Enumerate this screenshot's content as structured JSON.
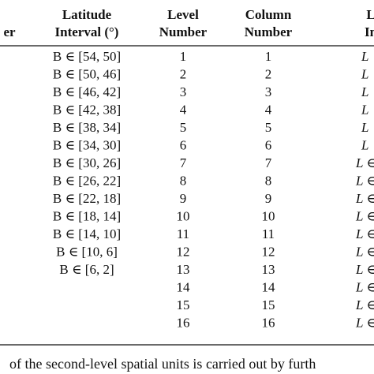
{
  "table": {
    "headers": [
      {
        "lines": [
          "er"
        ]
      },
      {
        "lines": [
          "Latitude",
          "Interval (°)"
        ]
      },
      {
        "lines": [
          "Level",
          "Number"
        ]
      },
      {
        "lines": [
          "Column",
          "Number"
        ]
      },
      {
        "lines": [
          "L",
          "In"
        ]
      }
    ],
    "rows": [
      {
        "latitude": "B ∈ [54, 50]",
        "level": "1",
        "column": "1",
        "longitude": "L"
      },
      {
        "latitude": "B ∈ [50, 46]",
        "level": "2",
        "column": "2",
        "longitude": "L"
      },
      {
        "latitude": "B ∈ [46, 42]",
        "level": "3",
        "column": "3",
        "longitude": "L"
      },
      {
        "latitude": "B ∈ [42, 38]",
        "level": "4",
        "column": "4",
        "longitude": "L"
      },
      {
        "latitude": "B ∈ [38, 34]",
        "level": "5",
        "column": "5",
        "longitude": "L"
      },
      {
        "latitude": "B ∈ [34, 30]",
        "level": "6",
        "column": "6",
        "longitude": "L"
      },
      {
        "latitude": "B ∈ [30, 26]",
        "level": "7",
        "column": "7",
        "longitude": "L ∈"
      },
      {
        "latitude": "B ∈ [26, 22]",
        "level": "8",
        "column": "8",
        "longitude": "L ∈"
      },
      {
        "latitude": "B ∈ [22, 18]",
        "level": "9",
        "column": "9",
        "longitude": "L ∈"
      },
      {
        "latitude": "B ∈ [18, 14]",
        "level": "10",
        "column": "10",
        "longitude": "L ∈"
      },
      {
        "latitude": "B ∈ [14, 10]",
        "level": "11",
        "column": "11",
        "longitude": "L ∈"
      },
      {
        "latitude": "B ∈ [10, 6]",
        "level": "12",
        "column": "12",
        "longitude": "L ∈"
      },
      {
        "latitude": "B ∈ [6, 2]",
        "level": "13",
        "column": "13",
        "longitude": "L ∈"
      },
      {
        "level": "14",
        "column": "14",
        "longitude": "L ∈"
      },
      {
        "level": "15",
        "column": "15",
        "longitude": "L ∈"
      },
      {
        "level": "16",
        "column": "16",
        "longitude": "L ∈"
      }
    ]
  },
  "body": {
    "text": "of the second-level spatial units is carried out by furth"
  }
}
